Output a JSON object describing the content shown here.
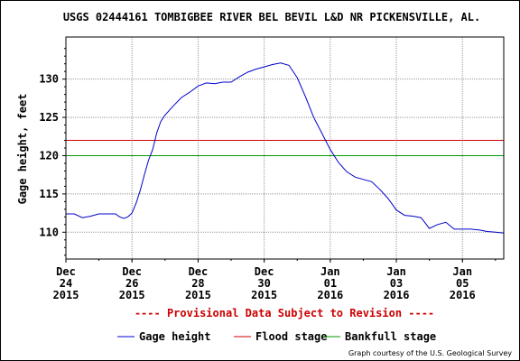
{
  "chart_data": {
    "type": "line",
    "title": "USGS 02444161 TOMBIGBEE RIVER BEL BEVIL L&D NR PICKENSVILLE, AL.",
    "ylabel": "Gage height, feet",
    "xlabel": "",
    "ylim": [
      106.5,
      135.5
    ],
    "xlim": [
      "2015-12-24",
      "2016-01-06T06:00"
    ],
    "grid": true,
    "yticks": [
      110,
      115,
      120,
      125,
      130
    ],
    "xticks": [
      {
        "date": "2015-12-24",
        "lines": [
          "Dec",
          "24",
          "2015"
        ]
      },
      {
        "date": "2015-12-26",
        "lines": [
          "Dec",
          "26",
          "2015"
        ]
      },
      {
        "date": "2015-12-28",
        "lines": [
          "Dec",
          "28",
          "2015"
        ]
      },
      {
        "date": "2015-12-30",
        "lines": [
          "Dec",
          "30",
          "2015"
        ]
      },
      {
        "date": "2016-01-01",
        "lines": [
          "Jan",
          "01",
          "2016"
        ]
      },
      {
        "date": "2016-01-03",
        "lines": [
          "Jan",
          "03",
          "2016"
        ]
      },
      {
        "date": "2016-01-05",
        "lines": [
          "Jan",
          "05",
          "2016"
        ]
      }
    ],
    "series": [
      {
        "name": "Gage height",
        "color": "#0000cc",
        "points": [
          [
            "2015-12-24T00:00",
            112.4
          ],
          [
            "2015-12-24T06:00",
            112.4
          ],
          [
            "2015-12-24T12:00",
            111.9
          ],
          [
            "2015-12-24T18:00",
            112.1
          ],
          [
            "2015-12-25T00:00",
            112.4
          ],
          [
            "2015-12-25T06:00",
            112.4
          ],
          [
            "2015-12-25T12:00",
            112.4
          ],
          [
            "2015-12-25T15:00",
            112.0
          ],
          [
            "2015-12-25T18:00",
            111.8
          ],
          [
            "2015-12-25T21:00",
            112.0
          ],
          [
            "2015-12-26T00:00",
            112.5
          ],
          [
            "2015-12-26T03:00",
            113.8
          ],
          [
            "2015-12-26T06:00",
            115.5
          ],
          [
            "2015-12-26T09:00",
            117.5
          ],
          [
            "2015-12-26T12:00",
            119.4
          ],
          [
            "2015-12-26T15:00",
            120.8
          ],
          [
            "2015-12-26T18:00",
            123.0
          ],
          [
            "2015-12-26T21:00",
            124.5
          ],
          [
            "2015-12-27T00:00",
            125.3
          ],
          [
            "2015-12-27T06:00",
            126.5
          ],
          [
            "2015-12-27T12:00",
            127.6
          ],
          [
            "2015-12-27T18:00",
            128.3
          ],
          [
            "2015-12-28T00:00",
            129.1
          ],
          [
            "2015-12-28T06:00",
            129.5
          ],
          [
            "2015-12-28T12:00",
            129.4
          ],
          [
            "2015-12-28T18:00",
            129.6
          ],
          [
            "2015-12-29T00:00",
            129.6
          ],
          [
            "2015-12-29T06:00",
            130.3
          ],
          [
            "2015-12-29T12:00",
            130.9
          ],
          [
            "2015-12-29T18:00",
            131.3
          ],
          [
            "2015-12-30T00:00",
            131.6
          ],
          [
            "2015-12-30T06:00",
            131.9
          ],
          [
            "2015-12-30T12:00",
            132.1
          ],
          [
            "2015-12-30T18:00",
            131.8
          ],
          [
            "2015-12-31T00:00",
            130.2
          ],
          [
            "2015-12-31T06:00",
            127.7
          ],
          [
            "2015-12-31T12:00",
            125.0
          ],
          [
            "2015-12-31T18:00",
            122.9
          ],
          [
            "2016-01-01T00:00",
            120.8
          ],
          [
            "2016-01-01T06:00",
            119.1
          ],
          [
            "2016-01-01T12:00",
            117.9
          ],
          [
            "2016-01-01T18:00",
            117.2
          ],
          [
            "2016-01-02T00:00",
            116.9
          ],
          [
            "2016-01-02T06:00",
            116.6
          ],
          [
            "2016-01-02T12:00",
            115.6
          ],
          [
            "2016-01-02T18:00",
            114.4
          ],
          [
            "2016-01-03T00:00",
            112.9
          ],
          [
            "2016-01-03T06:00",
            112.2
          ],
          [
            "2016-01-03T12:00",
            112.1
          ],
          [
            "2016-01-03T18:00",
            111.9
          ],
          [
            "2016-01-04T00:00",
            110.5
          ],
          [
            "2016-01-04T06:00",
            111.0
          ],
          [
            "2016-01-04T12:00",
            111.3
          ],
          [
            "2016-01-04T18:00",
            110.4
          ],
          [
            "2016-01-05T00:00",
            110.4
          ],
          [
            "2016-01-05T06:00",
            110.4
          ],
          [
            "2016-01-05T12:00",
            110.3
          ],
          [
            "2016-01-05T18:00",
            110.1
          ],
          [
            "2016-01-06T00:00",
            110.0
          ],
          [
            "2016-01-06T06:00",
            109.9
          ]
        ]
      },
      {
        "name": "Flood stage",
        "color": "#cc0000",
        "constant": 122
      },
      {
        "name": "Bankfull stage",
        "color": "#009900",
        "constant": 120
      }
    ],
    "annotation": "---- Provisional Data Subject to Revision ----",
    "credit": "Graph courtesy of the U.S. Geological Survey",
    "legend_position": "bottom"
  }
}
